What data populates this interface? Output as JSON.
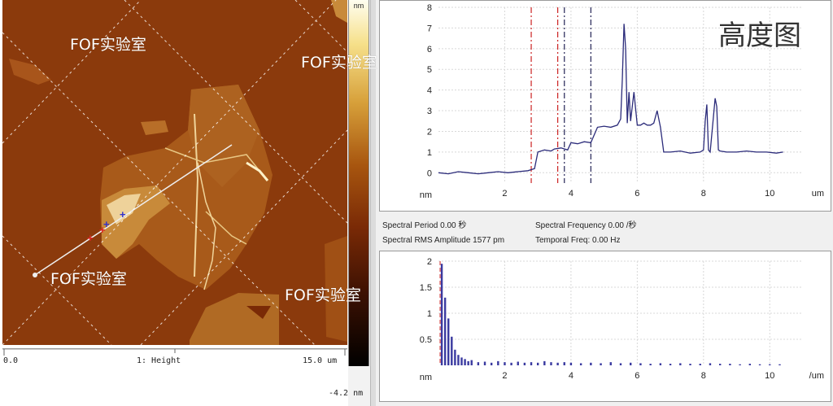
{
  "heading": "高度图",
  "watermark": "FOF实验室",
  "image": {
    "scale_top": "nm",
    "scale_bottom": "-4.2 nm",
    "axis_left": "0.0",
    "axis_center": "1: Height",
    "axis_right": "15.0 um"
  },
  "info": {
    "spectral_period": "Spectral Period 0.00 秒",
    "spectral_frequency": "Spectral Frequency 0.00 /秒",
    "rms_amplitude": "Spectral RMS Amplitude 1577 pm",
    "temporal_freq": "Temporal Freq: 0.00 Hz"
  },
  "colors": {
    "trace": "#2b2b7a",
    "red_marker": "#cc2222",
    "dark_marker": "#222255",
    "accent": "#8b3a0c"
  },
  "chart_data": [
    {
      "type": "line",
      "ylabel": "nm",
      "xlabel": "um",
      "xlim": [
        0,
        11
      ],
      "ylim": [
        -0.5,
        8
      ],
      "xticks": [
        2,
        4,
        6,
        8,
        10
      ],
      "yticks": [
        0,
        1,
        2,
        3,
        4,
        5,
        6,
        7,
        8
      ],
      "grid": true,
      "markers": [
        {
          "x": 2.8,
          "color": "red"
        },
        {
          "x": 3.6,
          "color": "red"
        },
        {
          "x": 3.8,
          "color": "dark"
        },
        {
          "x": 4.6,
          "color": "dark"
        }
      ],
      "x": [
        0.0,
        0.3,
        0.6,
        0.9,
        1.2,
        1.5,
        1.8,
        2.1,
        2.4,
        2.7,
        2.9,
        3.0,
        3.2,
        3.4,
        3.5,
        3.7,
        3.9,
        4.0,
        4.2,
        4.4,
        4.6,
        4.8,
        5.0,
        5.2,
        5.4,
        5.5,
        5.55,
        5.6,
        5.65,
        5.7,
        5.75,
        5.8,
        5.9,
        6.0,
        6.1,
        6.2,
        6.3,
        6.4,
        6.5,
        6.6,
        6.7,
        6.8,
        7.0,
        7.3,
        7.6,
        7.9,
        8.0,
        8.05,
        8.1,
        8.15,
        8.2,
        8.3,
        8.35,
        8.4,
        8.45,
        8.5,
        8.7,
        9.0,
        9.3,
        9.6,
        9.9,
        10.2,
        10.4
      ],
      "values": [
        0.0,
        -0.05,
        0.05,
        0.0,
        -0.05,
        0.0,
        0.05,
        0.0,
        0.05,
        0.1,
        0.2,
        1.0,
        1.1,
        1.05,
        1.15,
        1.2,
        1.1,
        1.45,
        1.4,
        1.5,
        1.45,
        2.2,
        2.25,
        2.2,
        2.3,
        2.6,
        4.5,
        7.2,
        6.0,
        2.4,
        3.9,
        2.5,
        3.9,
        2.3,
        2.3,
        2.4,
        2.3,
        2.3,
        2.4,
        3.0,
        2.2,
        1.0,
        1.0,
        1.05,
        0.95,
        1.0,
        1.1,
        2.5,
        3.3,
        1.1,
        1.0,
        2.7,
        3.6,
        3.2,
        1.1,
        1.05,
        1.0,
        1.0,
        1.05,
        1.0,
        1.0,
        0.95,
        1.0
      ]
    },
    {
      "type": "bar",
      "ylabel": "nm",
      "xlabel": "/um",
      "xlim": [
        0,
        11
      ],
      "ylim": [
        0,
        2
      ],
      "xticks": [
        2,
        4,
        6,
        8,
        10
      ],
      "yticks": [
        0.5,
        1,
        1.5,
        2
      ],
      "grid": true,
      "x": [
        0.1,
        0.2,
        0.3,
        0.4,
        0.5,
        0.6,
        0.7,
        0.8,
        0.9,
        1.0,
        1.2,
        1.4,
        1.6,
        1.8,
        2.0,
        2.2,
        2.4,
        2.6,
        2.8,
        3.0,
        3.2,
        3.4,
        3.6,
        3.8,
        4.0,
        4.3,
        4.6,
        4.9,
        5.2,
        5.5,
        5.8,
        6.1,
        6.4,
        6.7,
        7.0,
        7.3,
        7.6,
        7.9,
        8.2,
        8.5,
        8.8,
        9.1,
        9.4,
        9.7,
        10.0,
        10.3
      ],
      "values": [
        1.95,
        1.3,
        0.9,
        0.55,
        0.3,
        0.2,
        0.15,
        0.12,
        0.08,
        0.1,
        0.06,
        0.07,
        0.05,
        0.08,
        0.06,
        0.05,
        0.07,
        0.05,
        0.06,
        0.05,
        0.08,
        0.06,
        0.05,
        0.06,
        0.05,
        0.04,
        0.05,
        0.04,
        0.06,
        0.04,
        0.05,
        0.04,
        0.03,
        0.04,
        0.03,
        0.04,
        0.03,
        0.03,
        0.04,
        0.03,
        0.03,
        0.02,
        0.03,
        0.02,
        0.02,
        0.02
      ]
    }
  ]
}
